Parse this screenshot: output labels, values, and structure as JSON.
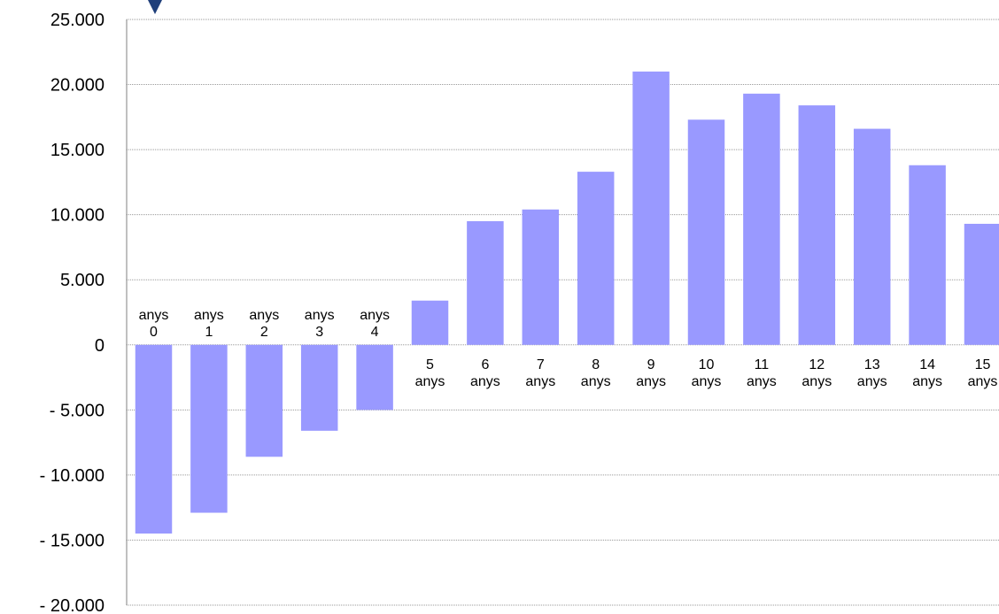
{
  "chart_data": {
    "type": "bar",
    "categories": [
      "anys 0",
      "anys 1",
      "anys 2",
      "anys 3",
      "anys 4",
      "5 anys",
      "6 anys",
      "7 anys",
      "8 anys",
      "9 anys",
      "10 anys",
      "11 anys",
      "12 anys",
      "13 anys",
      "14 anys",
      "15 anys"
    ],
    "category_lines": [
      [
        "anys",
        "0"
      ],
      [
        "anys",
        "1"
      ],
      [
        "anys",
        "2"
      ],
      [
        "anys",
        "3"
      ],
      [
        "anys",
        "4"
      ],
      [
        "5",
        "anys"
      ],
      [
        "6",
        "anys"
      ],
      [
        "7",
        "anys"
      ],
      [
        "8",
        "anys"
      ],
      [
        "9",
        "anys"
      ],
      [
        "10",
        "anys"
      ],
      [
        "11",
        "anys"
      ],
      [
        "12",
        "anys"
      ],
      [
        "13",
        "anys"
      ],
      [
        "14",
        "anys"
      ],
      [
        "15",
        "anys"
      ]
    ],
    "values": [
      -14500,
      -12900,
      -8600,
      -6600,
      -5000,
      3400,
      9500,
      10400,
      13300,
      21000,
      17300,
      19300,
      18400,
      16600,
      13800,
      9300
    ],
    "ylim": [
      -20000,
      25000
    ],
    "yticks": [
      25000,
      20000,
      15000,
      10000,
      5000,
      0,
      -5000,
      -10000,
      -15000,
      -20000
    ],
    "ytick_labels": [
      "25.000",
      "20.000",
      "15.000",
      "10.000",
      "5.000",
      "0",
      "- 5.000",
      "- 10.000",
      "- 15.000",
      "- 20.000"
    ],
    "grid": true,
    "title": "",
    "xlabel": "",
    "ylabel": "",
    "bar_color": "#9999ff",
    "marker_color": "#1f3f7a"
  }
}
